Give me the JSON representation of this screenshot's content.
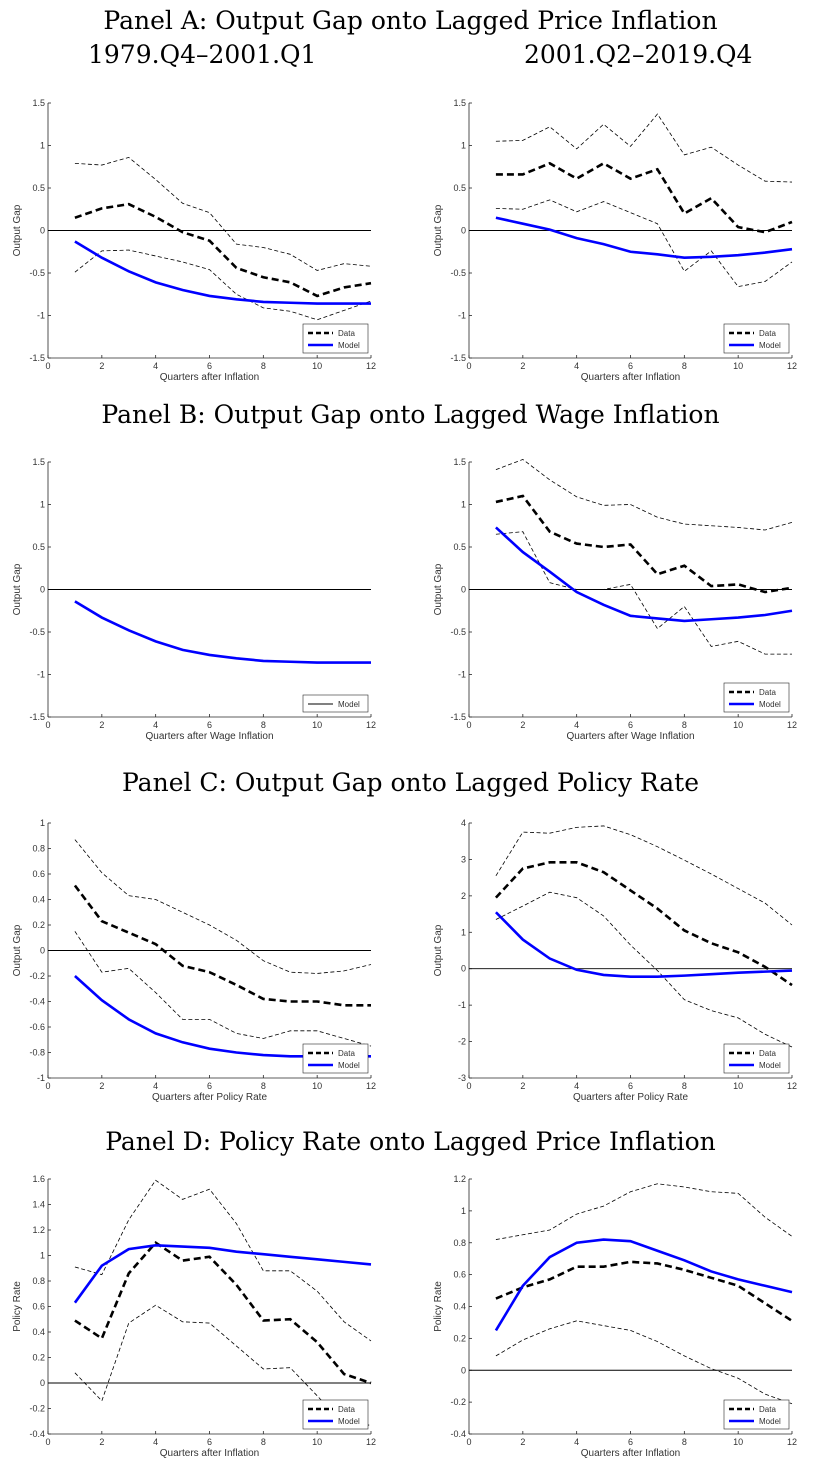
{
  "titles": {
    "panelA": "Panel A: Output Gap onto Lagged Price Inflation",
    "panelA_left": "1979.Q4–2001.Q1",
    "panelA_right": "2001.Q2–2019.Q4",
    "panelB": "Panel B: Output Gap onto Lagged Wage Inflation",
    "panelC": "Panel C: Output Gap onto Lagged Policy Rate",
    "panelD": "Panel D: Policy Rate onto Lagged Price Inflation"
  },
  "colors": {
    "data": "#000000",
    "model": "#0000ff",
    "band": "#000000",
    "zero": "#000000"
  },
  "chart_data": [
    {
      "type": "line",
      "id": "A1",
      "xlabel": "Quarters after Inflation",
      "ylabel": "Output Gap",
      "xlim": [
        0,
        12
      ],
      "ylim": [
        -1.5,
        1.5
      ],
      "xticks": [
        0,
        2,
        4,
        6,
        8,
        10,
        12
      ],
      "yticks": [
        -1.5,
        -1,
        -0.5,
        0,
        0.5,
        1,
        1.5
      ],
      "yticklabels": [
        "-1.5",
        "-1",
        "-0.5",
        "0",
        "0.5",
        "1",
        "1.5"
      ],
      "x": [
        1,
        2,
        3,
        4,
        5,
        6,
        7,
        8,
        9,
        10,
        11,
        12
      ],
      "legend": "bottom-right",
      "series": [
        {
          "name": "Data",
          "style": "data",
          "values": [
            0.15,
            0.26,
            0.31,
            0.16,
            -0.02,
            -0.12,
            -0.44,
            -0.55,
            -0.61,
            -0.77,
            -0.67,
            -0.62
          ]
        },
        {
          "name": "Model",
          "style": "model",
          "values": [
            -0.13,
            -0.32,
            -0.48,
            -0.61,
            -0.7,
            -0.77,
            -0.81,
            -0.84,
            -0.85,
            -0.86,
            -0.86,
            -0.86
          ]
        }
      ],
      "bands": [
        {
          "values": [
            0.79,
            0.77,
            0.86,
            0.6,
            0.32,
            0.21,
            -0.16,
            -0.2,
            -0.28,
            -0.47,
            -0.39,
            -0.42
          ]
        },
        {
          "values": [
            -0.49,
            -0.24,
            -0.23,
            -0.3,
            -0.37,
            -0.46,
            -0.75,
            -0.91,
            -0.95,
            -1.05,
            -0.94,
            -0.83
          ]
        }
      ]
    },
    {
      "type": "line",
      "id": "A2",
      "xlabel": "Quarters after Inflation",
      "ylabel": "Output Gap",
      "xlim": [
        0,
        12
      ],
      "ylim": [
        -1.5,
        1.5
      ],
      "xticks": [
        0,
        2,
        4,
        6,
        8,
        10,
        12
      ],
      "yticks": [
        -1.5,
        -1,
        -0.5,
        0,
        0.5,
        1,
        1.5
      ],
      "yticklabels": [
        "-1.5",
        "-1",
        "-0.5",
        "0",
        "0.5",
        "1",
        "1.5"
      ],
      "x": [
        1,
        2,
        3,
        4,
        5,
        6,
        7,
        8,
        9,
        10,
        11,
        12
      ],
      "legend": "bottom-right",
      "series": [
        {
          "name": "Data",
          "style": "data",
          "values": [
            0.66,
            0.66,
            0.79,
            0.61,
            0.79,
            0.61,
            0.72,
            0.2,
            0.38,
            0.04,
            -0.02,
            0.1
          ]
        },
        {
          "name": "Model",
          "style": "model",
          "values": [
            0.15,
            0.08,
            0.01,
            -0.09,
            -0.16,
            -0.25,
            -0.28,
            -0.32,
            -0.31,
            -0.29,
            -0.26,
            -0.22
          ]
        }
      ],
      "bands": [
        {
          "values": [
            1.05,
            1.06,
            1.22,
            0.96,
            1.25,
            0.99,
            1.37,
            0.89,
            0.98,
            0.77,
            0.58,
            0.57
          ]
        },
        {
          "values": [
            0.26,
            0.25,
            0.36,
            0.22,
            0.34,
            0.21,
            0.08,
            -0.48,
            -0.24,
            -0.66,
            -0.6,
            -0.37
          ]
        }
      ]
    },
    {
      "type": "line",
      "id": "B1",
      "xlabel": "Quarters after Wage Inflation",
      "ylabel": "Output Gap",
      "xlim": [
        0,
        12
      ],
      "ylim": [
        -1.5,
        1.5
      ],
      "xticks": [
        0,
        2,
        4,
        6,
        8,
        10,
        12
      ],
      "yticks": [
        -1.5,
        -1,
        -0.5,
        0,
        0.5,
        1,
        1.5
      ],
      "yticklabels": [
        "-1.5",
        "-1",
        "-0.5",
        "0",
        "0.5",
        "1",
        "1.5"
      ],
      "x": [
        1,
        2,
        3,
        4,
        5,
        6,
        7,
        8,
        9,
        10,
        11,
        12
      ],
      "legend": "bottom-right",
      "legendEntries": [
        {
          "name": "Model",
          "style": "thin"
        }
      ],
      "series": [
        {
          "name": "Model",
          "style": "model",
          "values": [
            -0.14,
            -0.33,
            -0.48,
            -0.61,
            -0.71,
            -0.77,
            -0.81,
            -0.84,
            -0.85,
            -0.86,
            -0.86,
            -0.86
          ]
        }
      ],
      "bands": []
    },
    {
      "type": "line",
      "id": "B2",
      "xlabel": "Quarters after Wage Inflation",
      "ylabel": "Output Gap",
      "xlim": [
        0,
        12
      ],
      "ylim": [
        -1.5,
        1.5
      ],
      "xticks": [
        0,
        2,
        4,
        6,
        8,
        10,
        12
      ],
      "yticks": [
        -1.5,
        -1,
        -0.5,
        0,
        0.5,
        1,
        1.5
      ],
      "yticklabels": [
        "-1.5",
        "-1",
        "-0.5",
        "0",
        "0.5",
        "1",
        "1.5"
      ],
      "x": [
        1,
        2,
        3,
        4,
        5,
        6,
        7,
        8,
        9,
        10,
        11,
        12
      ],
      "legend": "bottom-right",
      "series": [
        {
          "name": "Data",
          "style": "data",
          "values": [
            1.03,
            1.1,
            0.68,
            0.54,
            0.5,
            0.53,
            0.18,
            0.28,
            0.04,
            0.06,
            -0.03,
            0.02
          ]
        },
        {
          "name": "Model",
          "style": "model",
          "values": [
            0.73,
            0.44,
            0.21,
            -0.03,
            -0.18,
            -0.31,
            -0.34,
            -0.37,
            -0.35,
            -0.33,
            -0.3,
            -0.25
          ]
        }
      ],
      "bands": [
        {
          "values": [
            1.41,
            1.53,
            1.29,
            1.09,
            0.99,
            1.0,
            0.85,
            0.77,
            0.75,
            0.73,
            0.7,
            0.79
          ]
        },
        {
          "values": [
            0.65,
            0.68,
            0.08,
            0.0,
            0.0,
            0.06,
            -0.46,
            -0.2,
            -0.67,
            -0.61,
            -0.76,
            -0.76
          ]
        }
      ]
    },
    {
      "type": "line",
      "id": "C1",
      "xlabel": "Quarters after Policy Rate",
      "ylabel": "Output Gap",
      "xlim": [
        0,
        12
      ],
      "ylim": [
        -1,
        1
      ],
      "xticks": [
        0,
        2,
        4,
        6,
        8,
        10,
        12
      ],
      "yticks": [
        -1,
        -0.8,
        -0.6,
        -0.4,
        -0.2,
        0,
        0.2,
        0.4,
        0.6,
        0.8,
        1
      ],
      "yticklabels": [
        "-1",
        "-0.8",
        "-0.6",
        "-0.4",
        "-0.2",
        "0",
        "0.2",
        "0.4",
        "0.6",
        "0.8",
        "1"
      ],
      "x": [
        1,
        2,
        3,
        4,
        5,
        6,
        7,
        8,
        9,
        10,
        11,
        12
      ],
      "legend": "bottom-right",
      "series": [
        {
          "name": "Data",
          "style": "data",
          "values": [
            0.51,
            0.23,
            0.14,
            0.05,
            -0.12,
            -0.17,
            -0.27,
            -0.38,
            -0.4,
            -0.4,
            -0.43,
            -0.43
          ]
        },
        {
          "name": "Model",
          "style": "model",
          "values": [
            -0.2,
            -0.39,
            -0.54,
            -0.65,
            -0.72,
            -0.77,
            -0.8,
            -0.82,
            -0.83,
            -0.83,
            -0.83,
            -0.83
          ]
        }
      ],
      "bands": [
        {
          "values": [
            0.87,
            0.61,
            0.43,
            0.4,
            0.3,
            0.2,
            0.08,
            -0.08,
            -0.17,
            -0.18,
            -0.16,
            -0.11
          ]
        },
        {
          "values": [
            0.15,
            -0.17,
            -0.14,
            -0.33,
            -0.54,
            -0.54,
            -0.65,
            -0.69,
            -0.63,
            -0.63,
            -0.69,
            -0.75
          ]
        }
      ]
    },
    {
      "type": "line",
      "id": "C2",
      "xlabel": "Quarters after Policy Rate",
      "ylabel": "Output Gap",
      "xlim": [
        0,
        12
      ],
      "ylim": [
        -3,
        4
      ],
      "xticks": [
        0,
        2,
        4,
        6,
        8,
        10,
        12
      ],
      "yticks": [
        -3,
        -2,
        -1,
        0,
        1,
        2,
        3,
        4
      ],
      "yticklabels": [
        "-3",
        "-2",
        "-1",
        "0",
        "1",
        "2",
        "3",
        "4"
      ],
      "x": [
        1,
        2,
        3,
        4,
        5,
        6,
        7,
        8,
        9,
        10,
        11,
        12
      ],
      "legend": "bottom-right",
      "series": [
        {
          "name": "Data",
          "style": "data",
          "values": [
            1.95,
            2.75,
            2.92,
            2.92,
            2.65,
            2.15,
            1.65,
            1.05,
            0.7,
            0.45,
            0.05,
            -0.45
          ]
        },
        {
          "name": "Model",
          "style": "model",
          "values": [
            1.55,
            0.8,
            0.28,
            -0.03,
            -0.17,
            -0.22,
            -0.22,
            -0.19,
            -0.15,
            -0.11,
            -0.08,
            -0.05
          ]
        }
      ],
      "bands": [
        {
          "values": [
            2.55,
            3.75,
            3.72,
            3.88,
            3.92,
            3.68,
            3.35,
            2.98,
            2.6,
            2.2,
            1.8,
            1.2
          ]
        },
        {
          "values": [
            1.35,
            1.72,
            2.1,
            1.95,
            1.45,
            0.65,
            -0.05,
            -0.85,
            -1.15,
            -1.35,
            -1.8,
            -2.15
          ]
        }
      ]
    },
    {
      "type": "line",
      "id": "D1",
      "xlabel": "Quarters after Inflation",
      "ylabel": "Policy Rate",
      "xlim": [
        0,
        12
      ],
      "ylim": [
        -0.4,
        1.6
      ],
      "xticks": [
        0,
        2,
        4,
        6,
        8,
        10,
        12
      ],
      "yticks": [
        -0.4,
        -0.2,
        0,
        0.2,
        0.4,
        0.6,
        0.8,
        1,
        1.2,
        1.4,
        1.6
      ],
      "yticklabels": [
        "-0.4",
        "-0.2",
        "0",
        "0.2",
        "0.4",
        "0.6",
        "0.8",
        "1",
        "1.2",
        "1.4",
        "1.6"
      ],
      "x": [
        1,
        2,
        3,
        4,
        5,
        6,
        7,
        8,
        9,
        10,
        11,
        12
      ],
      "legend": "bottom-right",
      "series": [
        {
          "name": "Data",
          "style": "data",
          "values": [
            0.49,
            0.35,
            0.86,
            1.1,
            0.96,
            0.99,
            0.77,
            0.49,
            0.5,
            0.32,
            0.07,
            0.0
          ]
        },
        {
          "name": "Model",
          "style": "model",
          "values": [
            0.63,
            0.92,
            1.05,
            1.08,
            1.07,
            1.06,
            1.03,
            1.01,
            0.99,
            0.97,
            0.95,
            0.93
          ]
        }
      ],
      "bands": [
        {
          "values": [
            0.91,
            0.85,
            1.28,
            1.59,
            1.44,
            1.52,
            1.25,
            0.88,
            0.88,
            0.72,
            0.48,
            0.33
          ]
        },
        {
          "values": [
            0.08,
            -0.14,
            0.47,
            0.61,
            0.48,
            0.47,
            0.29,
            0.11,
            0.12,
            -0.1,
            -0.33,
            -0.33
          ]
        }
      ]
    },
    {
      "type": "line",
      "id": "D2",
      "xlabel": "Quarters after Inflation",
      "ylabel": "Policy Rate",
      "xlim": [
        0,
        12
      ],
      "ylim": [
        -0.4,
        1.2
      ],
      "xticks": [
        0,
        2,
        4,
        6,
        8,
        10,
        12
      ],
      "yticks": [
        -0.4,
        -0.2,
        0,
        0.2,
        0.4,
        0.6,
        0.8,
        1,
        1.2
      ],
      "yticklabels": [
        "-0.4",
        "-0.2",
        "0",
        "0.2",
        "0.4",
        "0.6",
        "0.8",
        "1",
        "1.2"
      ],
      "x": [
        1,
        2,
        3,
        4,
        5,
        6,
        7,
        8,
        9,
        10,
        11,
        12
      ],
      "legend": "bottom-right",
      "series": [
        {
          "name": "Data",
          "style": "data",
          "values": [
            0.45,
            0.52,
            0.57,
            0.65,
            0.65,
            0.68,
            0.67,
            0.63,
            0.58,
            0.53,
            0.42,
            0.31
          ]
        },
        {
          "name": "Model",
          "style": "model",
          "values": [
            0.25,
            0.53,
            0.71,
            0.8,
            0.82,
            0.81,
            0.75,
            0.69,
            0.62,
            0.57,
            0.53,
            0.49
          ]
        }
      ],
      "bands": [
        {
          "values": [
            0.82,
            0.85,
            0.88,
            0.98,
            1.03,
            1.12,
            1.17,
            1.15,
            1.12,
            1.11,
            0.96,
            0.84
          ]
        },
        {
          "values": [
            0.09,
            0.19,
            0.26,
            0.31,
            0.28,
            0.25,
            0.18,
            0.09,
            0.01,
            -0.05,
            -0.15,
            -0.21
          ]
        }
      ]
    }
  ]
}
